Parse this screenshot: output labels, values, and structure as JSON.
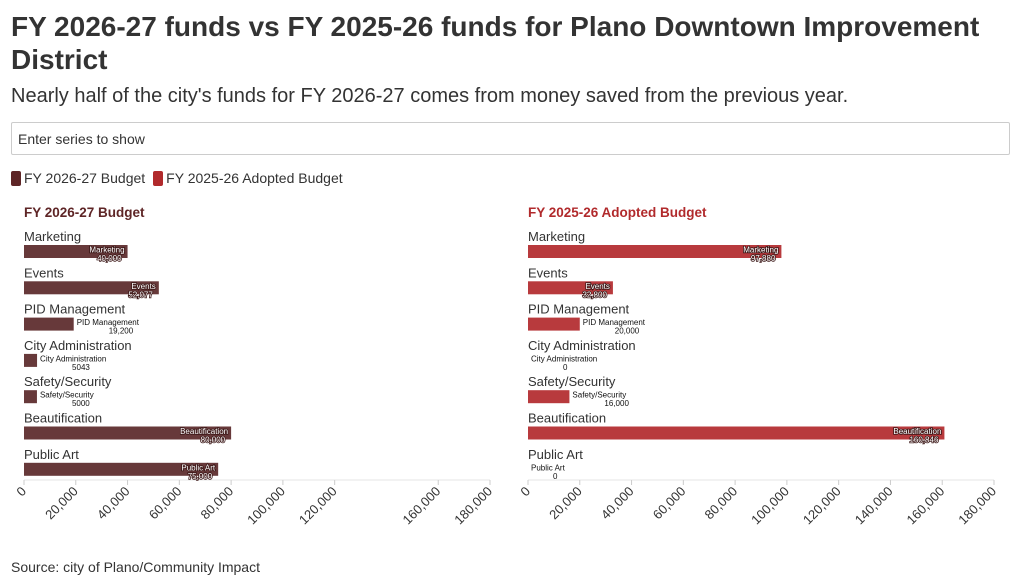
{
  "header": {
    "title": "FY 2026-27 funds vs FY 2025-26 funds for Plano Downtown Improvement District",
    "subtitle": "Nearly half of the city's funds for FY 2026-27 comes from money saved from the previous year."
  },
  "search": {
    "placeholder": "Enter series to show"
  },
  "legend": [
    {
      "label": "FY 2026-27 Budget",
      "color": "#5e2526"
    },
    {
      "label": "FY 2025-26 Adopted Budget",
      "color": "#b12a2c"
    }
  ],
  "footer": {
    "source": "Source: city of Plano/Community Impact"
  },
  "chart_data": [
    {
      "type": "bar",
      "orientation": "horizontal",
      "title": "FY 2026-27 Budget",
      "title_color": "#5e2526",
      "bar_color": "#67393a",
      "categories": [
        "Marketing",
        "Events",
        "PID Management",
        "City Administration",
        "Safety/Security",
        "Beautification",
        "Public Art"
      ],
      "values": [
        40000,
        52077,
        19200,
        5043,
        5000,
        80000,
        75000
      ],
      "value_labels": [
        "40,000",
        "52,077",
        "19,200",
        "5043",
        "5000",
        "80,000",
        "75,000"
      ],
      "xlim": [
        0,
        180000
      ],
      "xticks": [
        "0",
        "20,000",
        "40,000",
        "60,000",
        "80,000",
        "100,000",
        "120,000",
        "160,000",
        "180,000"
      ],
      "xtick_values": [
        0,
        20000,
        40000,
        60000,
        80000,
        100000,
        120000,
        160000,
        180000
      ]
    },
    {
      "type": "bar",
      "orientation": "horizontal",
      "title": "FY 2025-26 Adopted Budget",
      "title_color": "#b12a2c",
      "bar_color": "#b83a3d",
      "categories": [
        "Marketing",
        "Events",
        "PID Management",
        "City Administration",
        "Safety/Security",
        "Beautification",
        "Public Art"
      ],
      "values": [
        97880,
        32800,
        20000,
        0,
        16000,
        160846,
        0
      ],
      "value_labels": [
        "97,880",
        "32,800",
        "20,000",
        "0",
        "16,000",
        "160,846",
        "0"
      ],
      "xlim": [
        0,
        180000
      ],
      "xticks": [
        "0",
        "20,000",
        "40,000",
        "60,000",
        "80,000",
        "100,000",
        "120,000",
        "140,000",
        "160,000",
        "180,000"
      ],
      "xtick_values": [
        0,
        20000,
        40000,
        60000,
        80000,
        100000,
        120000,
        140000,
        160000,
        180000
      ]
    }
  ]
}
